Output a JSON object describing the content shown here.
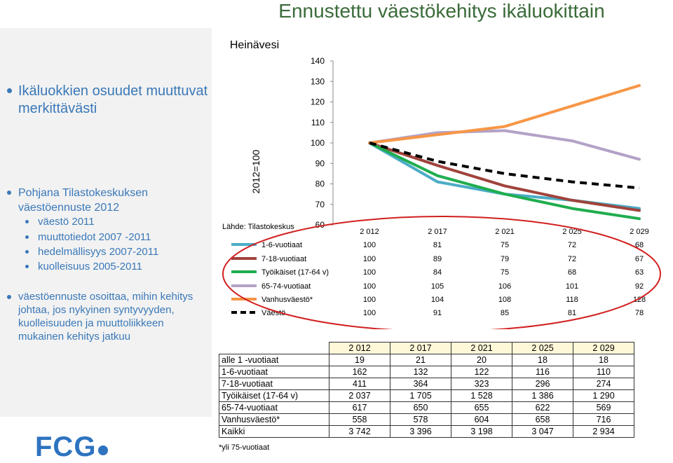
{
  "title": "Ennustettu väestökehitys ikäluokittain",
  "left": {
    "heading": "Ikäluokkien osuudet muuttuvat merkittävästi",
    "bullet2": "Pohjana Tilastokeskuksen väestöennuste 2012",
    "subs": [
      "väestö 2011",
      "muuttotiedot 2007 -2011",
      "hedelmällisyys 2007-2011",
      "kuolleisuus 2005-2011"
    ],
    "bullet3": "väestöennuste osoittaa, mihin kehitys johtaa, jos nykyinen syntyvyyden, kuolleisuuden ja muuttoliikkeen mukainen kehitys jatkuu"
  },
  "logo": "FCG",
  "chart_data": {
    "type": "line",
    "title": "Heinävesi",
    "ylabel": "2012=100",
    "source": "Lähde: Tilastokeskus",
    "x": [
      "2 012",
      "2 017",
      "2 021",
      "2 025",
      "2 029"
    ],
    "ylim": [
      60,
      140
    ],
    "yticks": [
      140,
      130,
      120,
      110,
      100,
      90,
      80,
      70,
      60
    ],
    "series": [
      {
        "name": "1-6-vuotiaat",
        "color": "#4bacc6",
        "dashed": false,
        "values": [
          100,
          81,
          75,
          72,
          68
        ]
      },
      {
        "name": "7-18-vuotiaat",
        "color": "#a0433c",
        "dashed": false,
        "values": [
          100,
          89,
          79,
          72,
          67
        ]
      },
      {
        "name": "Työikäiset (17-64 v)",
        "color": "#1fad4e",
        "dashed": false,
        "values": [
          100,
          84,
          75,
          68,
          63
        ]
      },
      {
        "name": "65-74-vuotiaat",
        "color": "#b3a2c7",
        "dashed": false,
        "values": [
          100,
          105,
          106,
          101,
          92
        ]
      },
      {
        "name": "Vanhusväestö*",
        "color": "#f79646",
        "dashed": false,
        "values": [
          100,
          104,
          108,
          118,
          128
        ]
      },
      {
        "name": "Väestö",
        "color": "#000000",
        "dashed": true,
        "values": [
          100,
          91,
          85,
          81,
          78
        ]
      }
    ]
  },
  "table": {
    "headers": [
      "2 012",
      "2 017",
      "2 021",
      "2 025",
      "2 029"
    ],
    "rows": [
      {
        "label": "alle 1 -vuotiaat",
        "values": [
          "19",
          "21",
          "20",
          "18",
          "18"
        ]
      },
      {
        "label": "1-6-vuotiaat",
        "values": [
          "162",
          "132",
          "122",
          "116",
          "110"
        ]
      },
      {
        "label": "7-18-vuotiaat",
        "values": [
          "411",
          "364",
          "323",
          "296",
          "274"
        ]
      },
      {
        "label": "Työikäiset (17-64 v)",
        "values": [
          "2 037",
          "1 705",
          "1 528",
          "1 386",
          "1 290"
        ]
      },
      {
        "label": "65-74-vuotiaat",
        "values": [
          "617",
          "650",
          "655",
          "622",
          "569"
        ]
      },
      {
        "label": "Vanhusväestö*",
        "values": [
          "558",
          "578",
          "604",
          "658",
          "716"
        ]
      },
      {
        "label": "Kaikki",
        "values": [
          "3 742",
          "3 396",
          "3 198",
          "3 047",
          "2 934"
        ]
      }
    ]
  },
  "footnote": "*yli 75-vuotiaat",
  "colors": {
    "accent": "#3a78b8",
    "title": "#3a6b3a",
    "highlight_ellipse": "#d21f1f"
  }
}
